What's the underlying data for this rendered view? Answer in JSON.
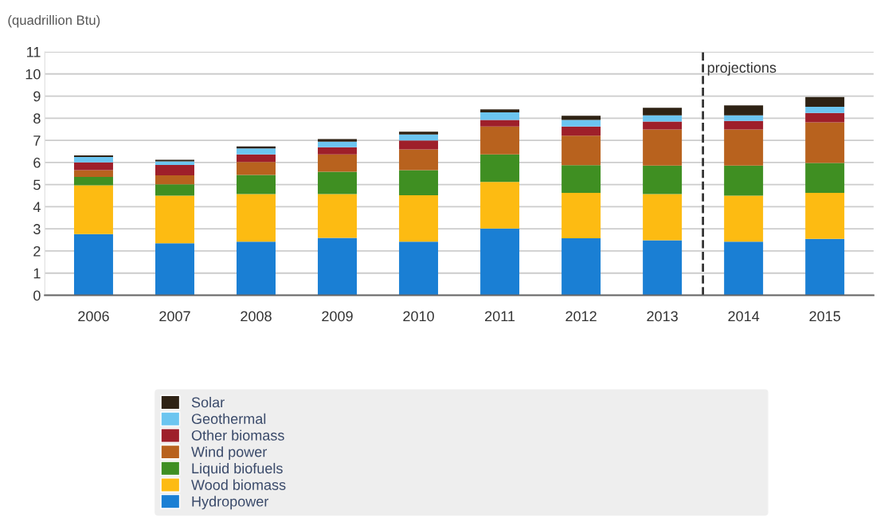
{
  "chart_data": {
    "type": "bar",
    "stacked": true,
    "ylabel": "(quadrillion Btu)",
    "x": [
      2006,
      2007,
      2008,
      2009,
      2010,
      2011,
      2012,
      2013,
      2014,
      2015
    ],
    "xlim": [
      2005.4,
      2015.6
    ],
    "xticks": [
      2006,
      2007,
      2008,
      2009,
      2010,
      2011,
      2012,
      2013,
      2014,
      2015
    ],
    "ylim": [
      0,
      11
    ],
    "yticks": [
      0,
      1,
      2,
      3,
      4,
      5,
      6,
      7,
      8,
      9,
      10,
      11
    ],
    "grid": "y",
    "legend": "bottom",
    "ref_lines": [
      {
        "axis": "x",
        "value": 2013.5,
        "label": "projections",
        "line_style": "dashed",
        "color": "#333333"
      }
    ],
    "series": [
      {
        "name": "Hydropower",
        "color": "#1a7fd4",
        "values": [
          2.76,
          2.35,
          2.42,
          2.59,
          2.42,
          3.02,
          2.57,
          2.48,
          2.42,
          2.55
        ]
      },
      {
        "name": "Wood biomass",
        "color": "#fdbb12",
        "values": [
          2.21,
          2.15,
          2.15,
          1.98,
          2.1,
          2.1,
          2.06,
          2.09,
          2.08,
          2.08
        ]
      },
      {
        "name": "Liquid biofuels",
        "color": "#3f8f22",
        "values": [
          0.38,
          0.51,
          0.87,
          1.01,
          1.13,
          1.24,
          1.25,
          1.29,
          1.36,
          1.35
        ]
      },
      {
        "name": "Wind power",
        "color": "#b8621e",
        "values": [
          0.3,
          0.41,
          0.58,
          0.78,
          0.94,
          1.26,
          1.33,
          1.63,
          1.63,
          1.83
        ]
      },
      {
        "name": "Other biomass",
        "color": "#9e1f2a",
        "values": [
          0.35,
          0.47,
          0.34,
          0.33,
          0.4,
          0.3,
          0.41,
          0.36,
          0.39,
          0.43
        ]
      },
      {
        "name": "Geothermal",
        "color": "#6cc5f0",
        "values": [
          0.25,
          0.16,
          0.27,
          0.25,
          0.27,
          0.34,
          0.3,
          0.28,
          0.25,
          0.28
        ]
      },
      {
        "name": "Solar",
        "color": "#2e2214",
        "values": [
          0.07,
          0.07,
          0.09,
          0.12,
          0.13,
          0.14,
          0.19,
          0.34,
          0.45,
          0.44
        ]
      }
    ]
  }
}
